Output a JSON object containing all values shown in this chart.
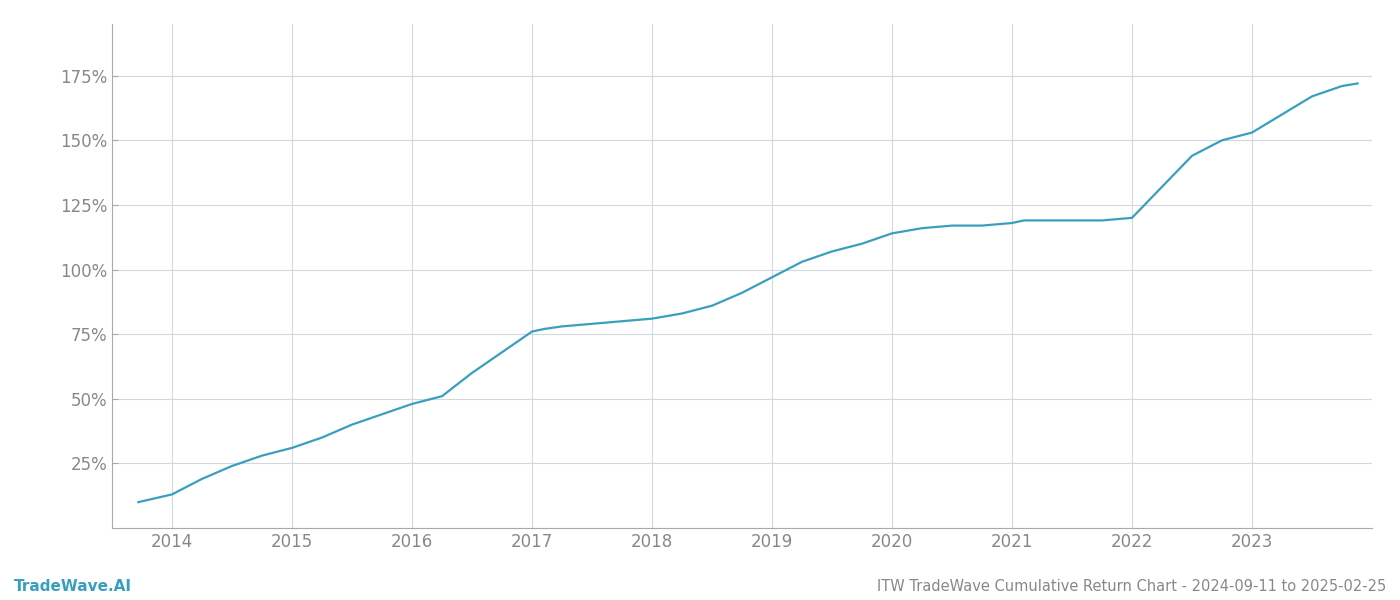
{
  "title": "ITW TradeWave Cumulative Return Chart - 2024-09-11 to 2025-02-25",
  "watermark": "TradeWave.AI",
  "line_color": "#3a9fbf",
  "background_color": "#ffffff",
  "grid_color": "#d0d8e0",
  "x_years": [
    2014,
    2015,
    2016,
    2017,
    2018,
    2019,
    2020,
    2021,
    2022,
    2023
  ],
  "x_data": [
    2013.72,
    2014.0,
    2014.25,
    2014.5,
    2014.75,
    2015.0,
    2015.25,
    2015.5,
    2015.75,
    2016.0,
    2016.25,
    2016.5,
    2016.75,
    2017.0,
    2017.1,
    2017.25,
    2017.5,
    2017.75,
    2018.0,
    2018.25,
    2018.5,
    2018.75,
    2019.0,
    2019.25,
    2019.5,
    2019.75,
    2020.0,
    2020.25,
    2020.5,
    2020.75,
    2021.0,
    2021.1,
    2021.25,
    2021.5,
    2021.75,
    2022.0,
    2022.25,
    2022.5,
    2022.75,
    2023.0,
    2023.25,
    2023.5,
    2023.75,
    2023.88
  ],
  "y_data": [
    10,
    13,
    19,
    24,
    28,
    31,
    35,
    40,
    44,
    48,
    51,
    60,
    68,
    76,
    77,
    78,
    79,
    80,
    81,
    83,
    86,
    91,
    97,
    103,
    107,
    110,
    114,
    116,
    117,
    117,
    118,
    119,
    119,
    119,
    119,
    120,
    132,
    144,
    150,
    153,
    160,
    167,
    171,
    172
  ],
  "ylim": [
    0,
    195
  ],
  "yticks": [
    25,
    50,
    75,
    100,
    125,
    150,
    175
  ],
  "ytick_labels": [
    "25%",
    "50%",
    "75%",
    "100%",
    "125%",
    "150%",
    "175%"
  ],
  "xlim": [
    2013.5,
    2024.0
  ],
  "line_width": 1.6,
  "title_fontsize": 10.5,
  "watermark_fontsize": 11,
  "tick_fontsize": 12,
  "tick_color": "#888888",
  "axis_color": "#888888",
  "spine_color": "#aaaaaa"
}
